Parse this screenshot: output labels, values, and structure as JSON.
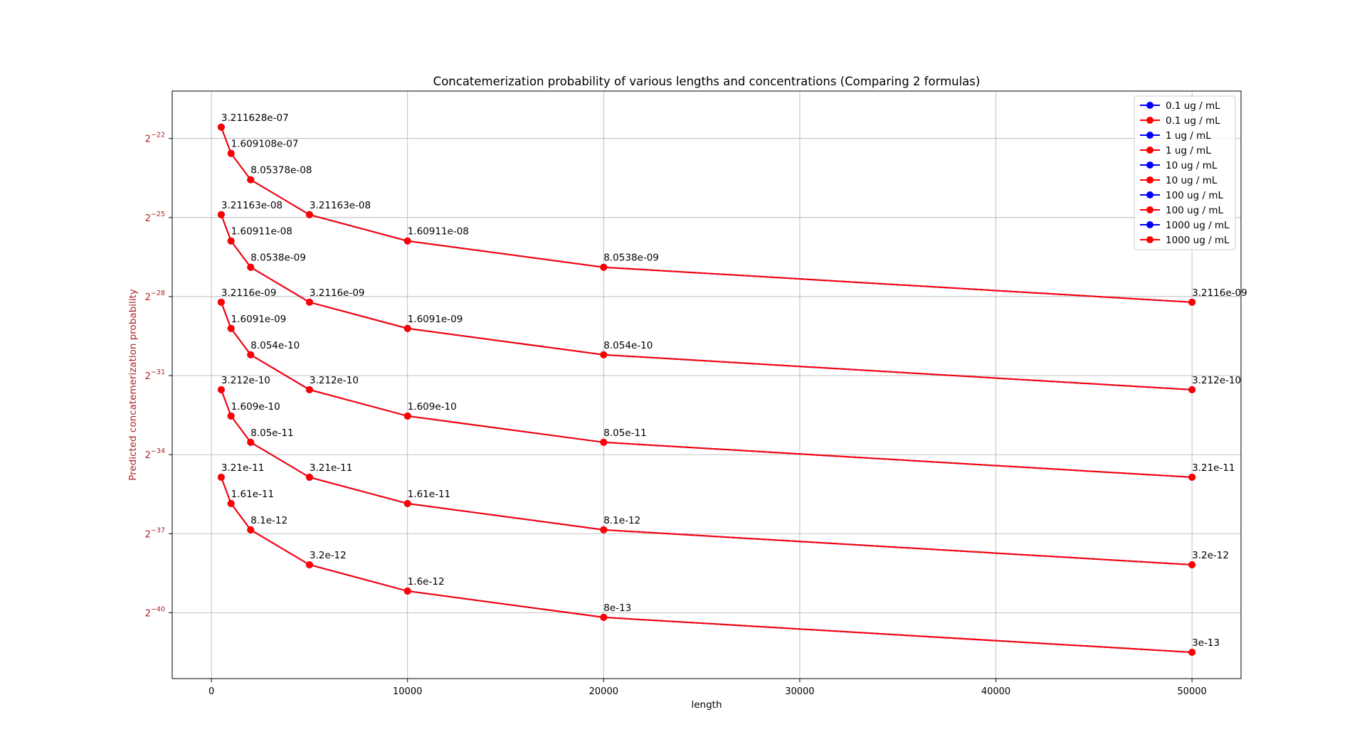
{
  "chart_data": {
    "type": "line",
    "title": "Concatemerization probability of various lengths and concentrations (Comparing 2 formulas)",
    "xlabel": "length",
    "ylabel": "Predicted concatemerization probability",
    "y_scale": "log2",
    "xlim": [
      -2000,
      52500
    ],
    "ylim_exponent": [
      -42.5,
      -20.2
    ],
    "x_ticks": [
      0,
      10000,
      20000,
      30000,
      40000,
      50000
    ],
    "x_tick_labels": [
      "0",
      "10000",
      "20000",
      "30000",
      "40000",
      "50000"
    ],
    "y_ticks_exponent": [
      -22,
      -25,
      -28,
      -31,
      -34,
      -37,
      -40
    ],
    "y_tick_base": "2",
    "y_tick_exponent_labels": [
      "−22",
      "−25",
      "−28",
      "−31",
      "−34",
      "−37",
      "−40"
    ],
    "grid": true,
    "legend_position": "top-right",
    "ylabel_color": "#b22222",
    "x": [
      500,
      1000,
      2000,
      5000,
      10000,
      20000,
      50000
    ],
    "series": [
      {
        "name": "0.1 ug / mL",
        "color": "#0000ff",
        "values": [
          3.211628e-11,
          1.609108e-11,
          8.05378e-12,
          3.21163e-12,
          1.60911e-12,
          8.0538e-13,
          3.2116e-13
        ]
      },
      {
        "name": "0.1 ug / mL",
        "color": "#ff0000",
        "values": [
          3.211628e-11,
          1.609108e-11,
          8.05378e-12,
          3.21163e-12,
          1.60911e-12,
          8.0538e-13,
          3.2116e-13
        ],
        "labels": [
          "3.21e-11",
          "1.61e-11",
          "8.1e-12",
          "3.2e-12",
          "1.6e-12",
          "8e-13",
          "3e-13"
        ]
      },
      {
        "name": "1 ug / mL",
        "color": "#0000ff",
        "values": [
          3.211628e-10,
          1.609108e-10,
          8.05378e-11,
          3.21163e-11,
          1.60911e-11,
          8.0538e-12,
          3.2116e-12
        ]
      },
      {
        "name": "1 ug / mL",
        "color": "#ff0000",
        "values": [
          3.211628e-10,
          1.609108e-10,
          8.05378e-11,
          3.21163e-11,
          1.60911e-11,
          8.0538e-12,
          3.2116e-12
        ],
        "labels": [
          "3.212e-10",
          "1.609e-10",
          "8.05e-11",
          "3.21e-11",
          "1.61e-11",
          "8.1e-12",
          "3.2e-12"
        ]
      },
      {
        "name": "10 ug / mL",
        "color": "#0000ff",
        "values": [
          3.211628e-09,
          1.609108e-09,
          8.05378e-10,
          3.21163e-10,
          1.60911e-10,
          8.0538e-11,
          3.2116e-11
        ]
      },
      {
        "name": "10 ug / mL",
        "color": "#ff0000",
        "values": [
          3.211628e-09,
          1.609108e-09,
          8.05378e-10,
          3.21163e-10,
          1.60911e-10,
          8.0538e-11,
          3.2116e-11
        ],
        "labels": [
          "3.2116e-09",
          "1.6091e-09",
          "8.054e-10",
          "3.212e-10",
          "1.609e-10",
          "8.05e-11",
          "3.21e-11"
        ]
      },
      {
        "name": "100 ug / mL",
        "color": "#0000ff",
        "values": [
          3.211628e-08,
          1.609108e-08,
          8.05378e-09,
          3.21163e-09,
          1.60911e-09,
          8.0538e-10,
          3.2116e-10
        ]
      },
      {
        "name": "100 ug / mL",
        "color": "#ff0000",
        "values": [
          3.211628e-08,
          1.609108e-08,
          8.05378e-09,
          3.21163e-09,
          1.60911e-09,
          8.0538e-10,
          3.2116e-10
        ],
        "labels": [
          "3.21163e-08",
          "1.60911e-08",
          "8.0538e-09",
          "3.2116e-09",
          "1.6091e-09",
          "8.054e-10",
          "3.212e-10"
        ]
      },
      {
        "name": "1000 ug / mL",
        "color": "#0000ff",
        "values": [
          3.211628e-07,
          1.609108e-07,
          8.05378e-08,
          3.21163e-08,
          1.60911e-08,
          8.0538e-09,
          3.2116e-09
        ]
      },
      {
        "name": "1000 ug / mL",
        "color": "#ff0000",
        "values": [
          3.211628e-07,
          1.609108e-07,
          8.05378e-08,
          3.21163e-08,
          1.60911e-08,
          8.0538e-09,
          3.2116e-09
        ],
        "labels": [
          "3.211628e-07",
          "1.609108e-07",
          "8.05378e-08",
          "3.21163e-08",
          "1.60911e-08",
          "8.0538e-09",
          "3.2116e-09"
        ]
      }
    ]
  }
}
